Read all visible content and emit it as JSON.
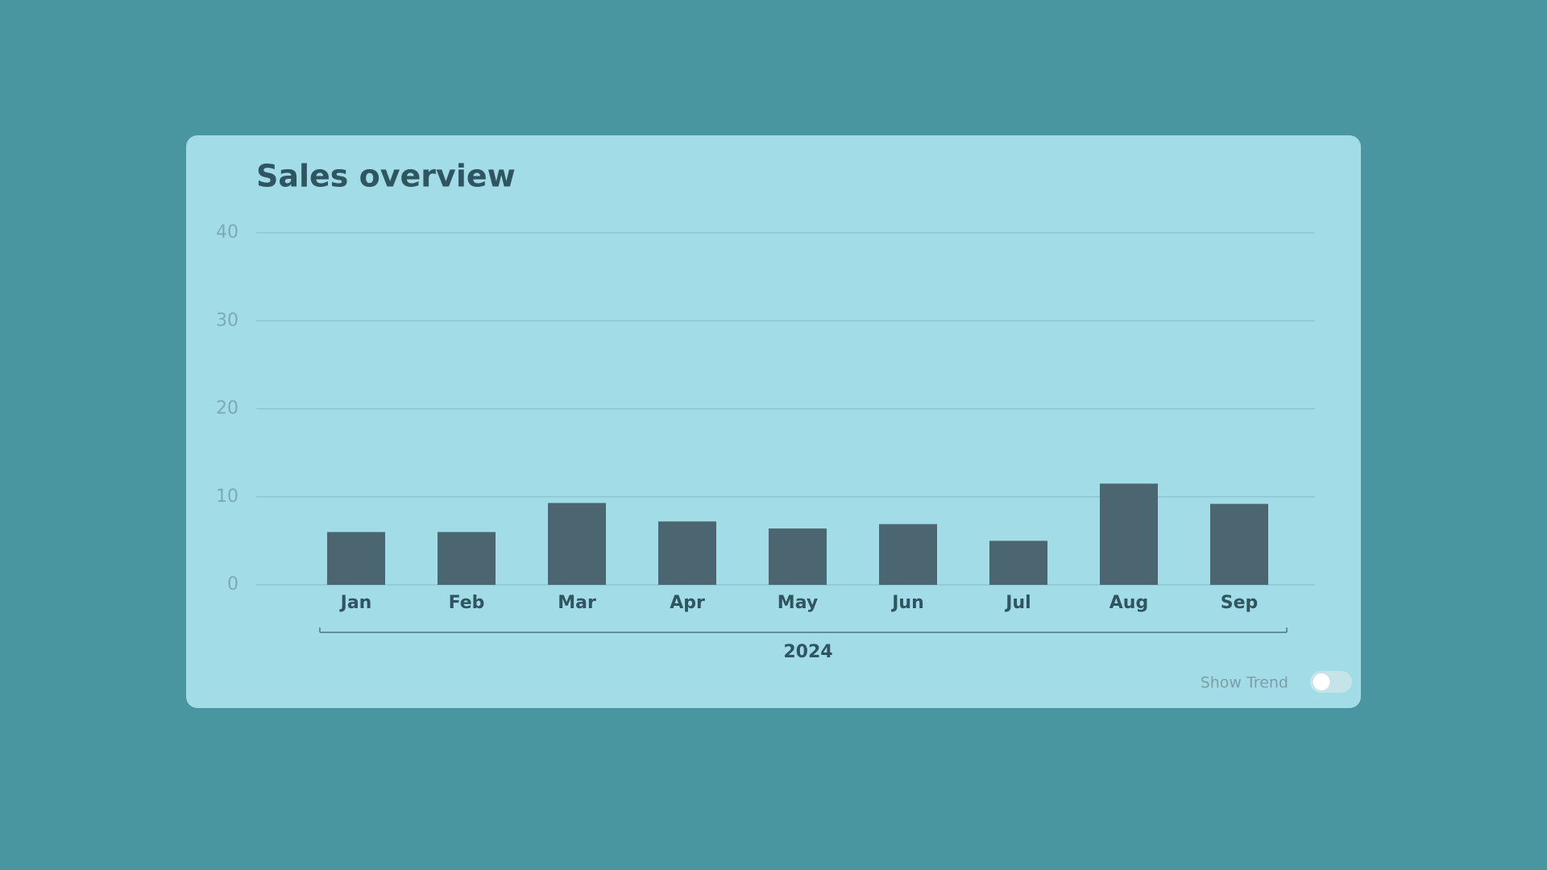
{
  "chart_data": {
    "type": "bar",
    "title": "Sales overview",
    "categories": [
      "Jan",
      "Feb",
      "Mar",
      "Apr",
      "May",
      "Jun",
      "Jul",
      "Aug",
      "Sep"
    ],
    "values": [
      6,
      6,
      9.3,
      7.2,
      6.4,
      6.9,
      5,
      11.5,
      9.2
    ],
    "color": "#4b6670",
    "ylim": [
      0,
      40
    ],
    "yticks": [
      0,
      10,
      20,
      30,
      40
    ],
    "grid": true,
    "x_group_label": "2024",
    "toggle_label": "Show Trend",
    "trend_visible": false
  }
}
